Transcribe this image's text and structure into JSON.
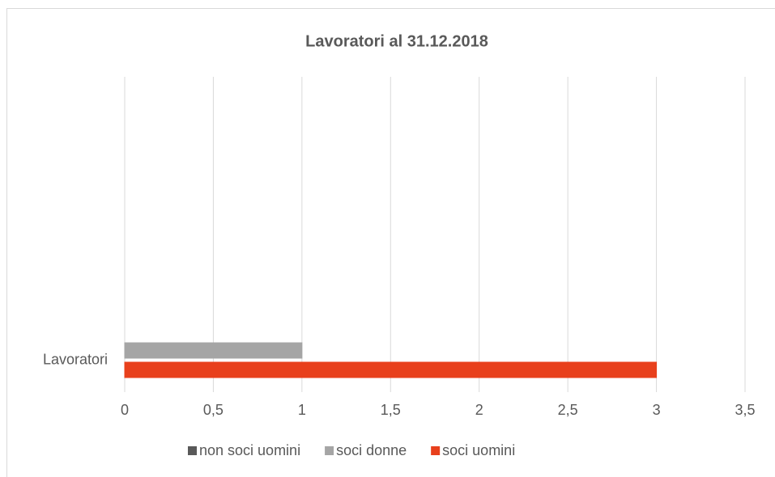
{
  "chart_data": {
    "type": "bar",
    "orientation": "horizontal",
    "title": "Lavoratori al 31.12.2018",
    "categories": [
      "Lavoratori"
    ],
    "series": [
      {
        "name": "non soci uomini",
        "color": "#595959",
        "values": [
          0
        ]
      },
      {
        "name": "soci donne",
        "color": "#a5a5a5",
        "values": [
          1
        ]
      },
      {
        "name": "soci uomini",
        "color": "#e8401c",
        "values": [
          3
        ]
      }
    ],
    "xlim": [
      0,
      3.5
    ],
    "xticks": [
      0,
      {
        "value": 0.5,
        "label": "0,5"
      },
      1,
      {
        "value": 1.5,
        "label": "1,5"
      },
      2,
      {
        "value": 2.5,
        "label": "2,5"
      },
      3,
      {
        "value": 3.5,
        "label": "3,5"
      }
    ],
    "grid": true,
    "legend": "bottom"
  }
}
